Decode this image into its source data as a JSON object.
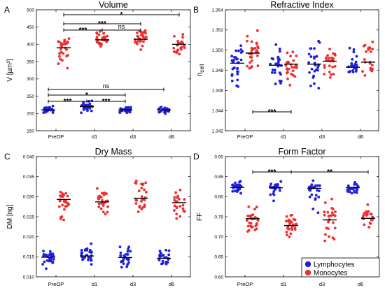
{
  "colors": {
    "lymphocytes": "#1f1fe0",
    "monocytes": "#ee2f2f",
    "median": "#000000",
    "axis": "#000000"
  },
  "legend": {
    "items": [
      {
        "label": "Lymphocytes",
        "color": "#1f1fe0"
      },
      {
        "label": "Monocytes",
        "color": "#ee2f2f"
      }
    ],
    "placement": "bottom-right of panel D"
  },
  "chart_data": [
    {
      "panel": "A",
      "type": "scatter",
      "title": "Volume",
      "ylabel": "V [µm³]",
      "categories": [
        "PreOP",
        "d1",
        "d3",
        "d6"
      ],
      "ylim": [
        150,
        500
      ],
      "yticks": [
        150,
        200,
        250,
        300,
        350,
        400,
        450,
        500
      ],
      "series": [
        {
          "name": "Lymphocytes",
          "medians": [
            210,
            220,
            210,
            210
          ],
          "range": [
            [
              197,
              225
            ],
            [
              198,
              240
            ],
            [
              198,
              222
            ],
            [
              198,
              220
            ]
          ],
          "counts": [
            30,
            28,
            26,
            22
          ]
        },
        {
          "name": "Monocytes",
          "medians": [
            390,
            413,
            415,
            400
          ],
          "range": [
            [
              323,
              435
            ],
            [
              378,
              450
            ],
            [
              378,
              460
            ],
            [
              362,
              450
            ]
          ],
          "counts": [
            30,
            28,
            26,
            22
          ]
        }
      ],
      "significance": [
        {
          "groups": [
            "PreOP",
            "d6"
          ],
          "series": "Monocytes",
          "label": "*"
        },
        {
          "groups": [
            "PreOP",
            "d3"
          ],
          "series": "Monocytes",
          "label": "***"
        },
        {
          "groups": [
            "PreOP",
            "d1"
          ],
          "series": "Monocytes",
          "label": "***"
        },
        {
          "groups": [
            "d1",
            "d3"
          ],
          "series": "Monocytes",
          "label": "ns"
        },
        {
          "groups": [
            "PreOP",
            "d6"
          ],
          "series": "Lymphocytes",
          "label": "ns"
        },
        {
          "groups": [
            "PreOP",
            "d3"
          ],
          "series": "Lymphocytes",
          "label": "*"
        },
        {
          "groups": [
            "PreOP",
            "d1"
          ],
          "series": "Lymphocytes",
          "label": "***"
        },
        {
          "groups": [
            "d1",
            "d3"
          ],
          "series": "Lymphocytes",
          "label": "***"
        }
      ]
    },
    {
      "panel": "B",
      "type": "scatter",
      "title": "Refractive Index",
      "ylabel": "n_cell",
      "categories": [
        "PreOP",
        "d1",
        "d3",
        "d6"
      ],
      "ylim": [
        1.342,
        1.354
      ],
      "yticks": [
        "1.342",
        "1.344",
        "1.346",
        "1.348",
        "1.350",
        "1.352",
        "1.354"
      ],
      "series": [
        {
          "name": "Lymphocytes",
          "medians": [
            1.3487,
            1.3485,
            1.3486,
            1.3483
          ],
          "range": [
            [
              1.346,
              1.3512
            ],
            [
              1.3455,
              1.3512
            ],
            [
              1.345,
              1.3525
            ],
            [
              1.3462,
              1.3512
            ]
          ],
          "counts": [
            30,
            28,
            26,
            22
          ]
        },
        {
          "name": "Monocytes",
          "medians": [
            1.3497,
            1.3486,
            1.3489,
            1.3488
          ],
          "range": [
            [
              1.3475,
              1.3525
            ],
            [
              1.346,
              1.3512
            ],
            [
              1.3453,
              1.351
            ],
            [
              1.346,
              1.3523
            ]
          ],
          "counts": [
            30,
            28,
            26,
            22
          ]
        }
      ],
      "significance": [
        {
          "groups": [
            "PreOP",
            "d1"
          ],
          "series": "Monocytes",
          "label": "***"
        }
      ]
    },
    {
      "panel": "C",
      "type": "scatter",
      "title": "Dry Mass",
      "ylabel": "DM [ng]",
      "categories": [
        "PreOP",
        "d1",
        "d3",
        "d6"
      ],
      "ylim": [
        0.01,
        0.04
      ],
      "yticks": [
        "0.010",
        "0.015",
        "0.020",
        "0.025",
        "0.030",
        "0.035",
        "0.040"
      ],
      "series": [
        {
          "name": "Lymphocytes",
          "medians": [
            0.0149,
            0.0152,
            0.0148,
            0.0146
          ],
          "range": [
            [
              0.0115,
              0.0175
            ],
            [
              0.0118,
              0.02
            ],
            [
              0.0115,
              0.019
            ],
            [
              0.012,
              0.0185
            ]
          ],
          "counts": [
            30,
            28,
            26,
            22
          ]
        },
        {
          "name": "Monocytes",
          "medians": [
            0.0293,
            0.0287,
            0.0296,
            0.0285
          ],
          "range": [
            [
              0.0225,
              0.035
            ],
            [
              0.0235,
              0.0335
            ],
            [
              0.022,
              0.0365
            ],
            [
              0.023,
              0.035
            ]
          ],
          "counts": [
            30,
            28,
            26,
            22
          ]
        }
      ],
      "significance": []
    },
    {
      "panel": "D",
      "type": "scatter",
      "title": "Form Factor",
      "ylabel": "FF",
      "categories": [
        "PreOP",
        "d1",
        "d3",
        "d6"
      ],
      "ylim": [
        0.6,
        0.9
      ],
      "yticks": [
        "0.60",
        "0.65",
        "0.70",
        "0.75",
        "0.80",
        "0.85",
        "0.90"
      ],
      "series": [
        {
          "name": "Lymphocytes",
          "medians": [
            0.823,
            0.822,
            0.821,
            0.823
          ],
          "range": [
            [
              0.8,
              0.84
            ],
            [
              0.78,
              0.845
            ],
            [
              0.725,
              0.845
            ],
            [
              0.8,
              0.84
            ]
          ],
          "counts": [
            30,
            28,
            26,
            22
          ]
        },
        {
          "name": "Monocytes",
          "medians": [
            0.745,
            0.728,
            0.742,
            0.746
          ],
          "range": [
            [
              0.685,
              0.79
            ],
            [
              0.67,
              0.78
            ],
            [
              0.675,
              0.815
            ],
            [
              0.715,
              0.795
            ]
          ],
          "counts": [
            30,
            28,
            26,
            22
          ]
        }
      ],
      "significance": [
        {
          "groups": [
            "PreOP",
            "d1"
          ],
          "series": "Monocytes",
          "label": "***"
        },
        {
          "groups": [
            "d1",
            "d6"
          ],
          "series": "Monocytes",
          "label": "**"
        }
      ]
    }
  ]
}
